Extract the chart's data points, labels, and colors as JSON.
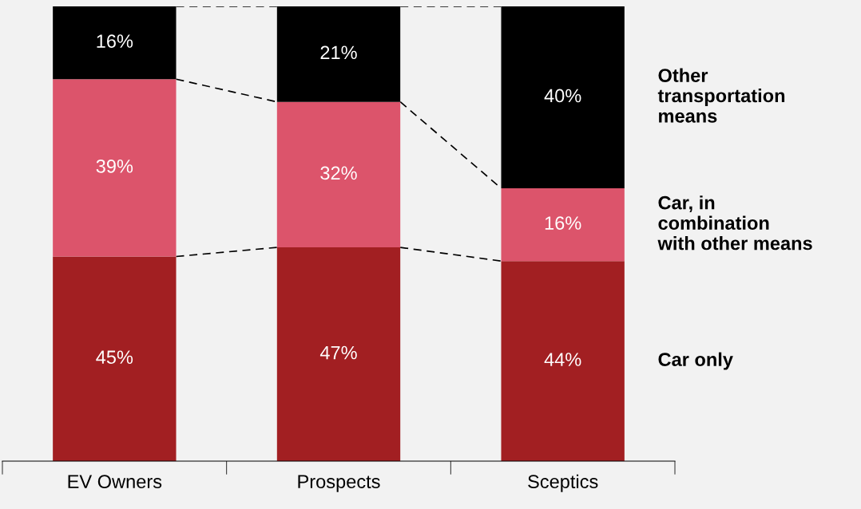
{
  "chart_data": {
    "type": "bar",
    "stacked": true,
    "categories": [
      "EV Owners",
      "Prospects",
      "Sceptics"
    ],
    "series": [
      {
        "name": "Car only",
        "color": "#a21f22",
        "values": [
          45,
          47,
          44
        ],
        "value_labels": [
          "45%",
          "47%",
          "44%"
        ]
      },
      {
        "name": "Car, in\ncombination\nwith other means",
        "color": "#dc546b",
        "values": [
          39,
          32,
          16
        ],
        "value_labels": [
          "39%",
          "32%",
          "16%"
        ]
      },
      {
        "name": "Other\ntransportation\nmeans",
        "color": "#000000",
        "values": [
          16,
          21,
          40
        ],
        "value_labels": [
          "16%",
          "21%",
          "40%"
        ]
      }
    ],
    "grid": false,
    "legend": false,
    "tick_labels": "x"
  }
}
